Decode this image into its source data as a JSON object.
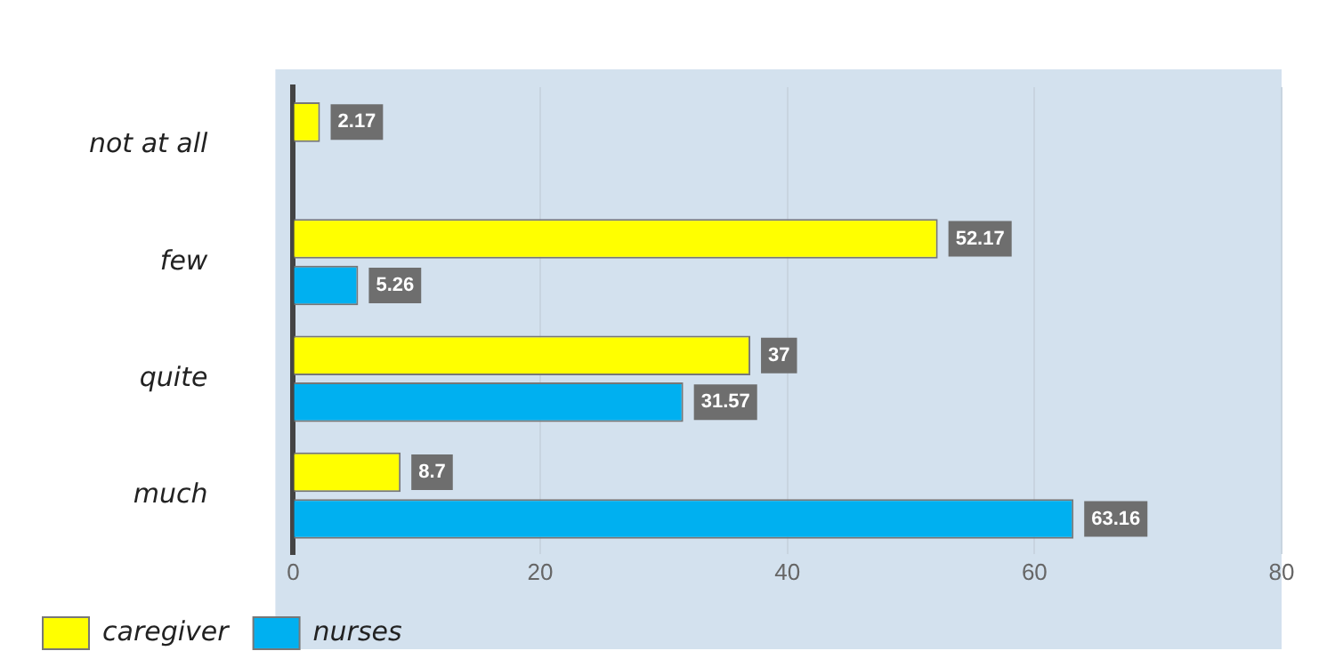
{
  "chart_data": {
    "type": "bar",
    "orientation": "horizontal",
    "categories": [
      "not at all",
      "few",
      "quite",
      "much"
    ],
    "series": [
      {
        "name": "caregiver",
        "color": "#ffff00",
        "values": [
          2.17,
          52.17,
          37,
          8.7
        ],
        "value_labels": [
          "2.17",
          "52.17",
          "37",
          "8.7"
        ]
      },
      {
        "name": "nurses",
        "color": "#00b0f0",
        "values": [
          0,
          5.26,
          31.57,
          63.16
        ],
        "value_labels": [
          null,
          "5.26",
          "31.57",
          "63.16"
        ]
      }
    ],
    "xlim": [
      0,
      80
    ],
    "xticks": [
      0,
      20,
      40,
      60,
      80
    ],
    "grid": "x",
    "legend": "bottom left"
  }
}
